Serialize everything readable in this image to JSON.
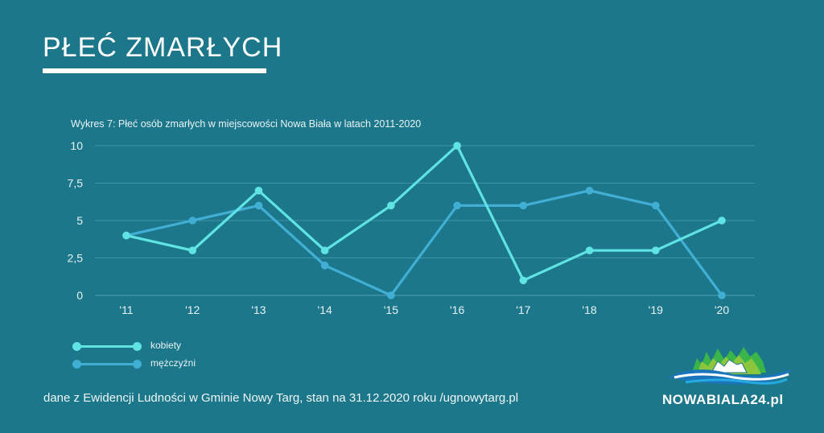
{
  "header": {
    "title": "PŁEĆ ZMARŁYCH"
  },
  "footer": {
    "source": "dane z Ewidencji Ludności w Gminie Nowy Targ, stan na 31.12.2020 roku /ugnowytarg.pl"
  },
  "logo": {
    "name": "NOWABIALA24",
    "tld": ".pl"
  },
  "colors": {
    "background": "#1d778b",
    "kobiety": "#5fe3e3",
    "mezczyzni": "#41aed4"
  },
  "chart_data": {
    "type": "line",
    "title": "Wykres 7: Płeć osób zmarłych w miejscowości Nowa Biała w latach 2011-2020",
    "xlabel": "",
    "ylabel": "",
    "categories": [
      "'11",
      "'12",
      "'13",
      "'14",
      "'15",
      "'16",
      "'17",
      "'18",
      "'19",
      "'20"
    ],
    "ylim": [
      0,
      10
    ],
    "yticks": [
      "0",
      "2,5",
      "5",
      "7,5",
      "10"
    ],
    "grid": true,
    "legend_position": "bottom-left",
    "series": [
      {
        "name": "kobiety",
        "values": [
          4,
          3,
          7,
          3,
          6,
          10,
          1,
          3,
          3,
          5
        ]
      },
      {
        "name": "mężczyźni",
        "values": [
          4,
          5,
          6,
          2,
          0,
          6,
          6,
          7,
          6,
          0
        ]
      }
    ]
  }
}
